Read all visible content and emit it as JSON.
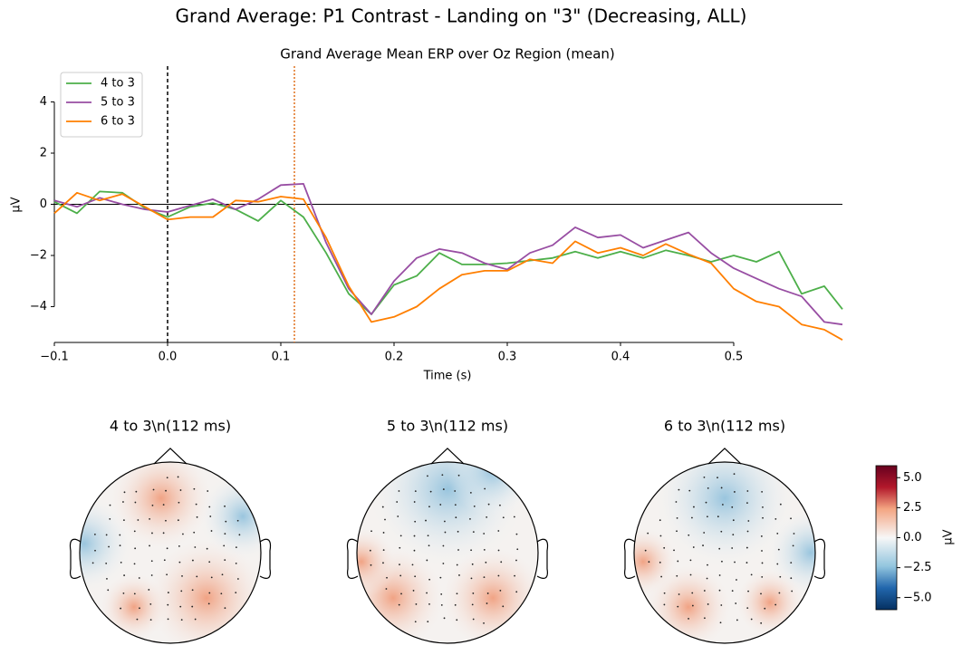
{
  "chart_data": {
    "type": "line",
    "suptitle": "Grand Average: P1 Contrast - Landing on \"3\" (Decreasing, ALL)",
    "title": "Grand Average Mean ERP over Oz Region (mean)",
    "xlabel": "Time (s)",
    "ylabel": "µV",
    "x": [
      -0.1,
      -0.08,
      -0.06,
      -0.04,
      -0.02,
      0,
      0.02,
      0.04,
      0.06,
      0.08,
      0.1,
      0.12,
      0.14,
      0.16,
      0.18,
      0.2,
      0.22,
      0.24,
      0.26,
      0.28,
      0.3,
      0.32,
      0.34,
      0.36,
      0.38,
      0.4,
      0.42,
      0.44,
      0.46,
      0.48,
      0.5,
      0.52,
      0.54,
      0.56,
      0.58,
      0.596
    ],
    "series": [
      {
        "name": "4 to 3",
        "color": "#4daf4a",
        "values": [
          0.1,
          -0.35,
          0.5,
          0.45,
          -0.15,
          -0.5,
          -0.1,
          0.05,
          -0.2,
          -0.65,
          0.15,
          -0.5,
          -1.9,
          -3.5,
          -4.3,
          -3.15,
          -2.8,
          -1.9,
          -2.35,
          -2.35,
          -2.3,
          -2.2,
          -2.1,
          -1.85,
          -2.1,
          -1.85,
          -2.1,
          -1.8,
          -2.0,
          -2.25,
          -2.0,
          -2.25,
          -1.85,
          -3.5,
          -3.2,
          -4.1
        ]
      },
      {
        "name": "5 to 3",
        "color": "#984ea3",
        "values": [
          0.15,
          -0.1,
          0.25,
          0.0,
          -0.2,
          -0.3,
          -0.05,
          0.2,
          -0.2,
          0.2,
          0.75,
          0.8,
          -1.5,
          -3.3,
          -4.3,
          -3.0,
          -2.1,
          -1.75,
          -1.9,
          -2.3,
          -2.55,
          -1.9,
          -1.6,
          -0.9,
          -1.3,
          -1.2,
          -1.7,
          -1.4,
          -1.1,
          -1.9,
          -2.5,
          -2.9,
          -3.3,
          -3.6,
          -4.6,
          -4.7
        ]
      },
      {
        "name": "6 to 3",
        "color": "#ff7f00",
        "values": [
          -0.35,
          0.45,
          0.15,
          0.4,
          -0.1,
          -0.6,
          -0.5,
          -0.5,
          0.15,
          0.1,
          0.3,
          0.2,
          -1.3,
          -3.2,
          -4.6,
          -4.4,
          -4.0,
          -3.3,
          -2.75,
          -2.6,
          -2.6,
          -2.15,
          -2.3,
          -1.45,
          -1.9,
          -1.7,
          -2.0,
          -1.55,
          -1.95,
          -2.3,
          -3.3,
          -3.8,
          -4.0,
          -4.7,
          -4.9,
          -5.3
        ]
      }
    ],
    "xlim": [
      -0.1,
      0.6
    ],
    "ylim": [
      -5.4,
      5.4
    ],
    "xticks": [
      {
        "value": -0.1,
        "label": "−0.1"
      },
      {
        "value": 0,
        "label": "0.0"
      },
      0.1,
      0.2,
      0.3,
      0.4,
      0.5
    ],
    "yticks": [
      {
        "value": -4,
        "label": "−4"
      },
      {
        "value": -2,
        "label": "−2"
      },
      0,
      2,
      4
    ],
    "hline": 0,
    "vlines": [
      {
        "x": 0,
        "color": "#000000",
        "dash": "dashed"
      },
      {
        "x": 0.112,
        "color": "#e0701d",
        "dash": "dotted"
      }
    ],
    "legend": "upper left"
  },
  "topomaps": {
    "titles": [
      "4 to 3\\n(112 ms)",
      "5 to 3\\n(112 ms)",
      "6 to 3\\n(112 ms)"
    ],
    "colorbar": {
      "label": "µV",
      "lim": [
        -6,
        6
      ],
      "ticks": [
        {
          "value": -5,
          "label": "−5.0"
        },
        {
          "value": -2.5,
          "label": "−2.5"
        },
        {
          "value": 0,
          "label": "0.0"
        },
        {
          "value": 2.5,
          "label": "2.5"
        },
        {
          "value": 5,
          "label": "5.0"
        }
      ]
    }
  }
}
